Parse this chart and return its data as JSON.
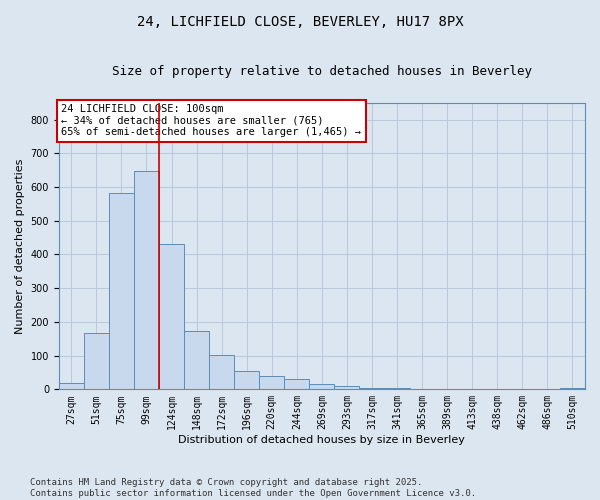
{
  "title_line1": "24, LICHFIELD CLOSE, BEVERLEY, HU17 8PX",
  "title_line2": "Size of property relative to detached houses in Beverley",
  "xlabel": "Distribution of detached houses by size in Beverley",
  "ylabel": "Number of detached properties",
  "categories": [
    "27sqm",
    "51sqm",
    "75sqm",
    "99sqm",
    "124sqm",
    "148sqm",
    "172sqm",
    "196sqm",
    "220sqm",
    "244sqm",
    "269sqm",
    "293sqm",
    "317sqm",
    "341sqm",
    "365sqm",
    "389sqm",
    "413sqm",
    "438sqm",
    "462sqm",
    "486sqm",
    "510sqm"
  ],
  "values": [
    20,
    168,
    583,
    648,
    430,
    172,
    103,
    55,
    40,
    31,
    15,
    10,
    5,
    3,
    2,
    1,
    0,
    0,
    0,
    0,
    5
  ],
  "bar_color": "#c9d9ed",
  "bar_edge_color": "#5b8db8",
  "grid_color": "#b8c8dc",
  "background_color": "#dce6f0",
  "vline_color": "#cc0000",
  "vline_x": 3.5,
  "annotation_text": "24 LICHFIELD CLOSE: 100sqm\n← 34% of detached houses are smaller (765)\n65% of semi-detached houses are larger (1,465) →",
  "annotation_box_facecolor": "#ffffff",
  "annotation_box_edgecolor": "#cc0000",
  "ylim": [
    0,
    850
  ],
  "yticks": [
    0,
    100,
    200,
    300,
    400,
    500,
    600,
    700,
    800
  ],
  "footer_text": "Contains HM Land Registry data © Crown copyright and database right 2025.\nContains public sector information licensed under the Open Government Licence v3.0.",
  "title_fontsize": 10,
  "subtitle_fontsize": 9,
  "ylabel_fontsize": 8,
  "xlabel_fontsize": 8,
  "tick_fontsize": 7,
  "annotation_fontsize": 7.5,
  "footer_fontsize": 6.5
}
